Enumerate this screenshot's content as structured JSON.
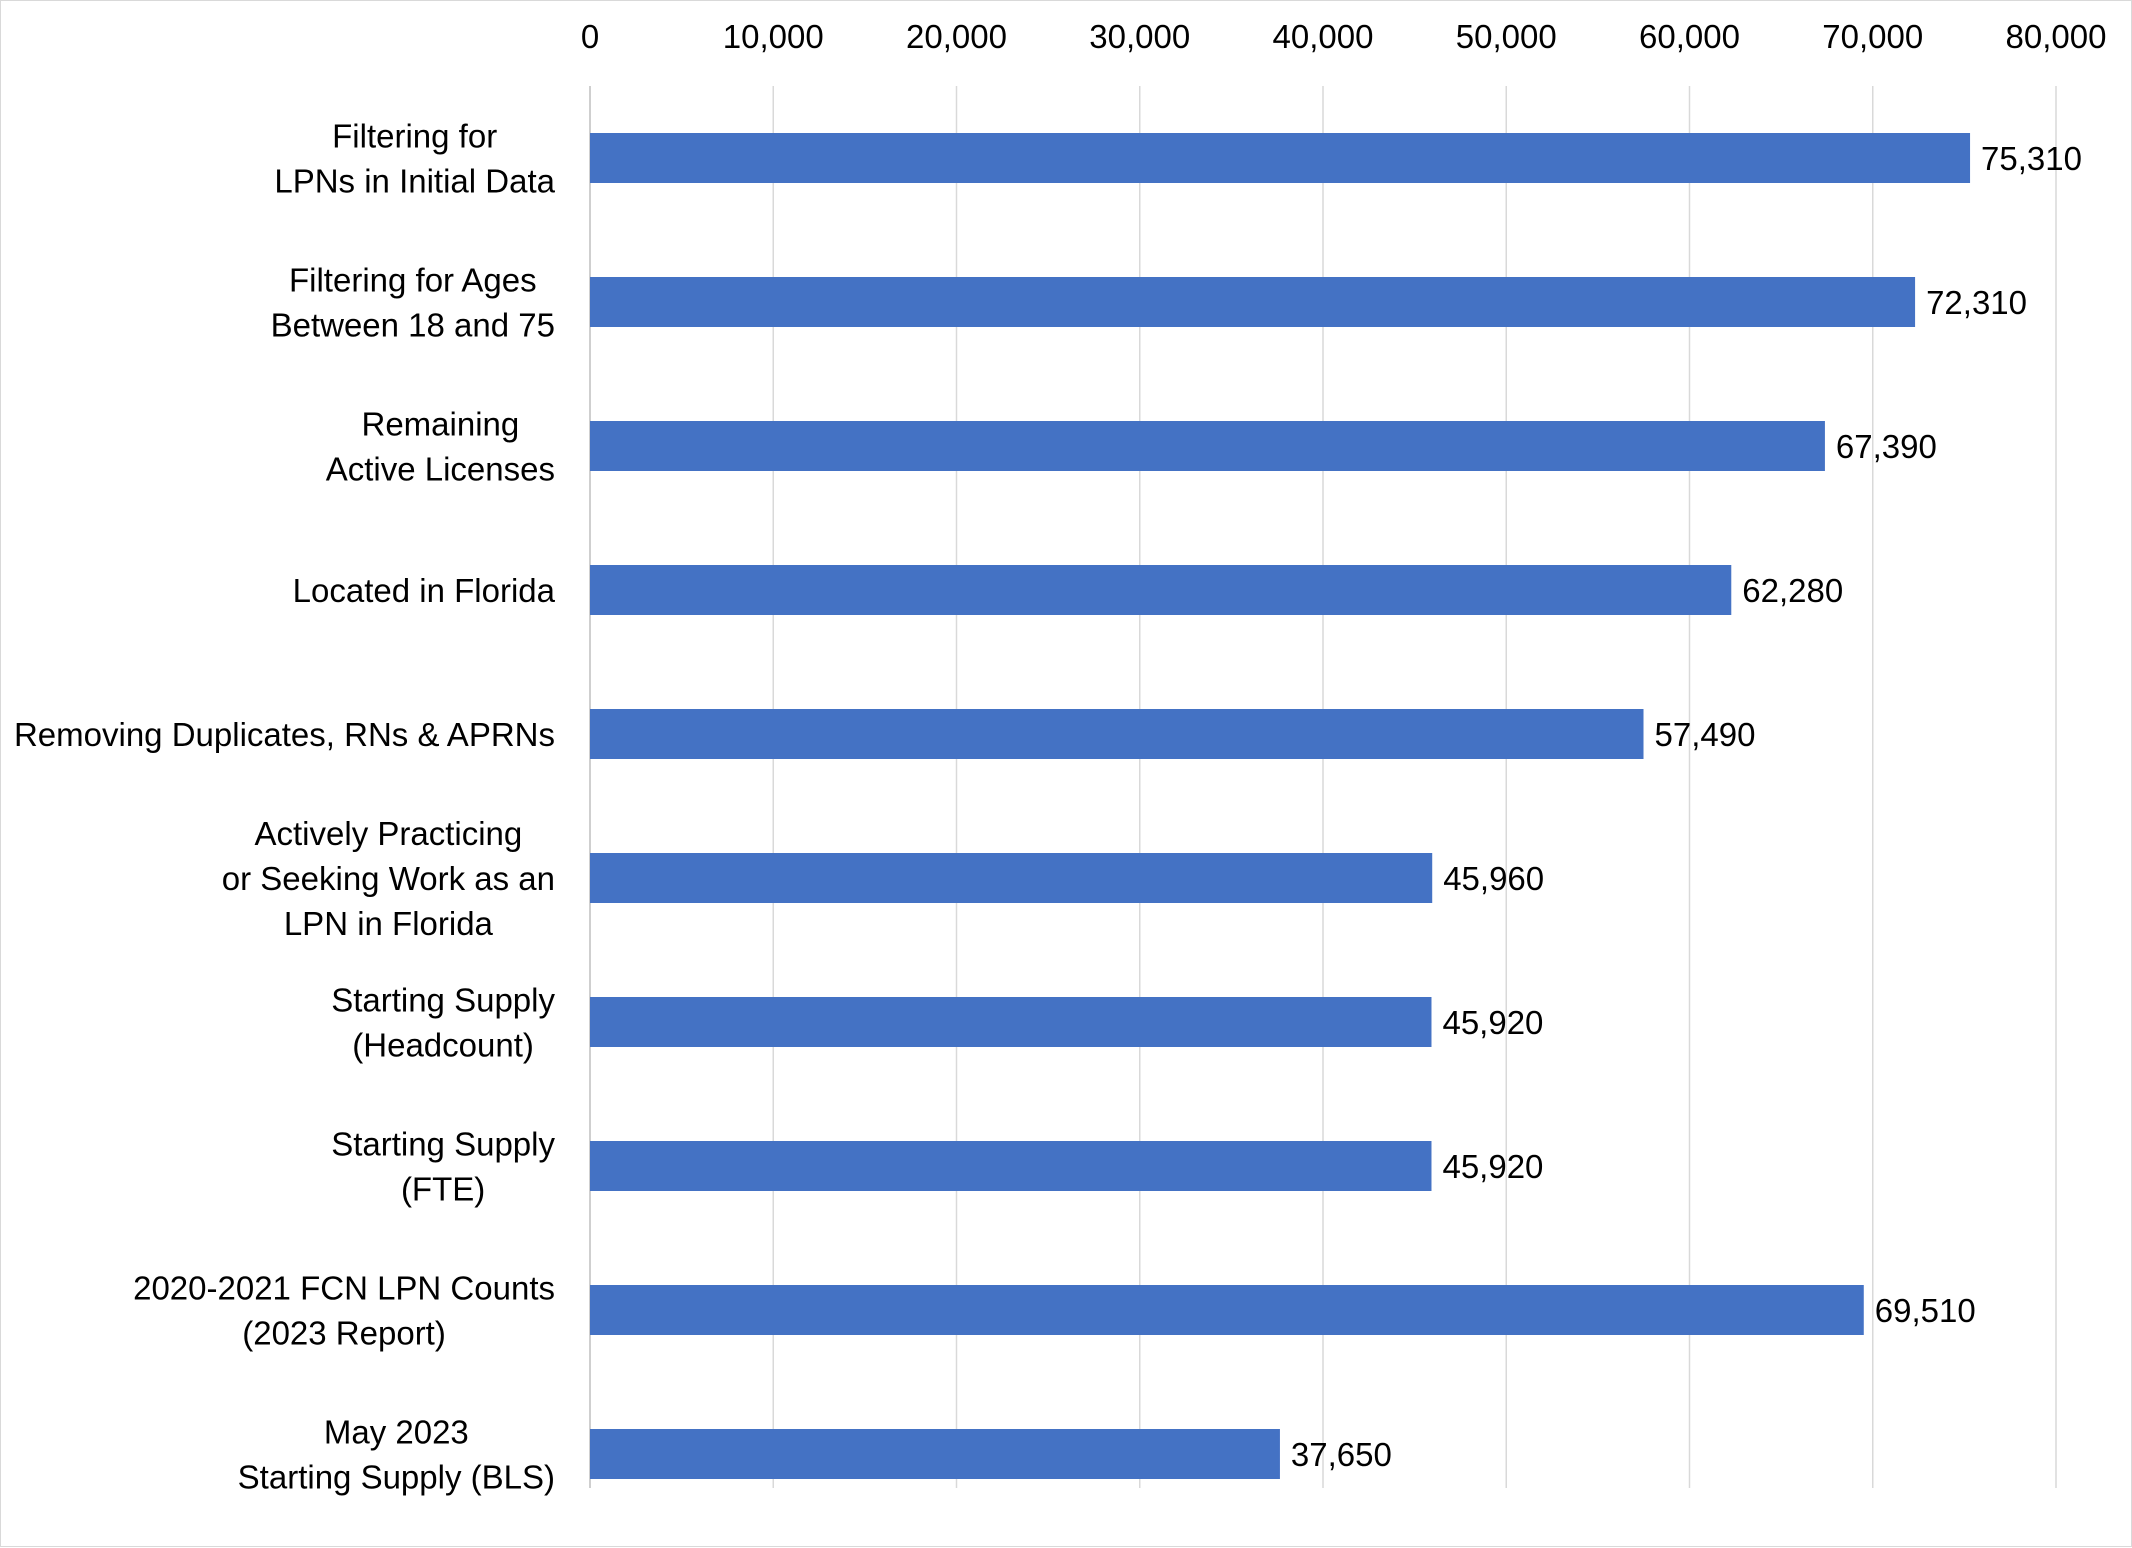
{
  "chart_data": {
    "type": "bar",
    "orientation": "horizontal",
    "title": "",
    "xlabel": "",
    "ylabel": "",
    "xlim": [
      0,
      80000
    ],
    "x_ticks": [
      0,
      10000,
      20000,
      30000,
      40000,
      50000,
      60000,
      70000,
      80000
    ],
    "x_tick_labels": [
      "0",
      "10,000",
      "20,000",
      "30,000",
      "40,000",
      "50,000",
      "60,000",
      "70,000",
      "80,000"
    ],
    "x_axis_position": "top",
    "grid": true,
    "bar_color": "#4472C4",
    "grid_color": "#D9D9D9",
    "categories": [
      {
        "lines": [
          "Filtering for",
          "LPNs in Initial Data"
        ]
      },
      {
        "lines": [
          "Filtering for Ages",
          "Between 18 and 75"
        ]
      },
      {
        "lines": [
          "Remaining",
          "Active Licenses"
        ]
      },
      {
        "lines": [
          "Located in Florida"
        ]
      },
      {
        "lines": [
          "Removing Duplicates, RNs & APRNs"
        ]
      },
      {
        "lines": [
          "Actively Practicing",
          "or Seeking Work as an",
          "LPN in Florida"
        ]
      },
      {
        "lines": [
          "Starting Supply",
          "(Headcount)"
        ]
      },
      {
        "lines": [
          "Starting Supply",
          "(FTE)"
        ]
      },
      {
        "lines": [
          "2020-2021 FCN LPN Counts",
          "(2023 Report)"
        ]
      },
      {
        "lines": [
          "May 2023",
          "Starting Supply (BLS)"
        ]
      }
    ],
    "values": [
      75310,
      72310,
      67390,
      62280,
      57490,
      45960,
      45920,
      45920,
      69510,
      37650
    ],
    "value_labels": [
      "75,310",
      "72,310",
      "67,390",
      "62,280",
      "57,490",
      "45,960",
      "45,920",
      "45,920",
      "69,510",
      "37,650"
    ]
  }
}
